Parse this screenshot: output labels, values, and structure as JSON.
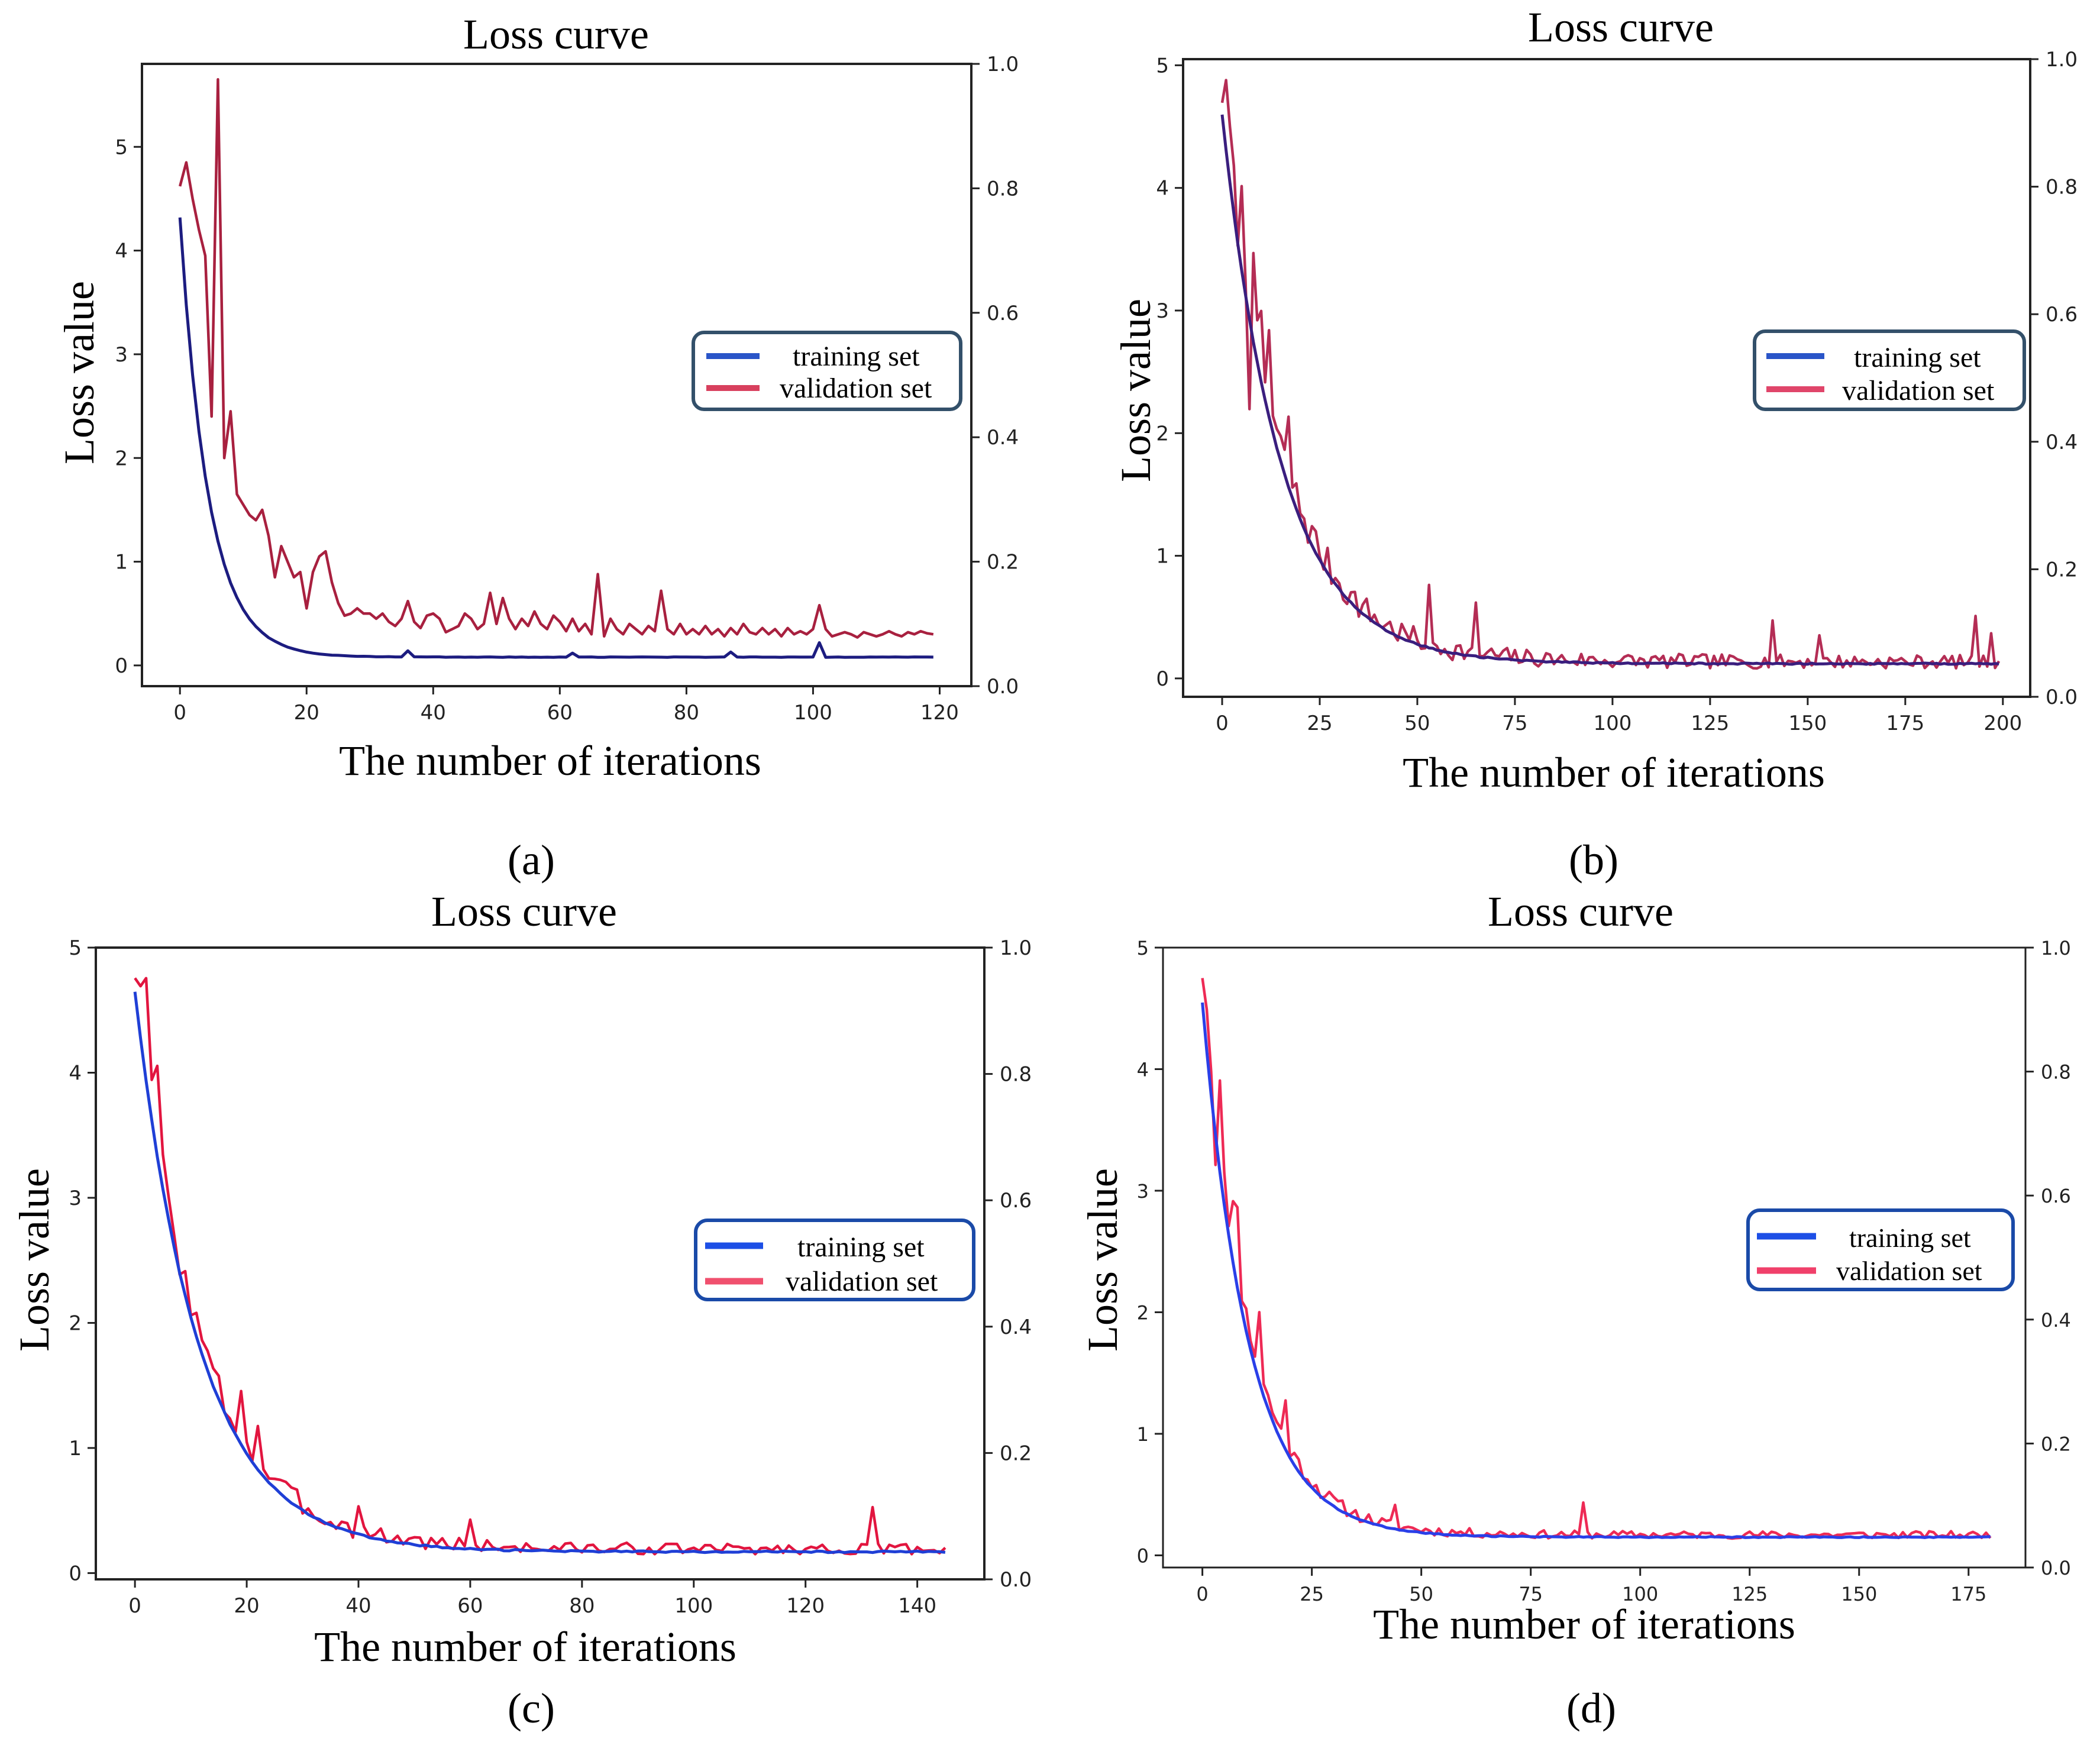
{
  "figure": {
    "panel_labels": [
      "(a)",
      "(b)",
      "(c)",
      "(d)"
    ]
  },
  "colors": {
    "a": {
      "training": "#1c1c80",
      "validation": "#a8203f",
      "legend_training": "#2a55c8",
      "legend_validation": "#d8405e"
    },
    "b": {
      "training": "#3a1e7e",
      "validation": "#b42d55",
      "legend_training": "#2a55c8",
      "legend_validation": "#e0456a"
    },
    "c": {
      "training": "#1f3fd6",
      "validation": "#e2153f",
      "legend_training": "#1d4fe6",
      "legend_validation": "#f0506e"
    },
    "d": {
      "training": "#2a3fe8",
      "validation": "#ee2a55",
      "legend_training": "#1d4fe6",
      "legend_validation": "#f0406a"
    }
  },
  "chart_data": [
    {
      "type": "line",
      "panel": "(a)",
      "title": "Loss curve",
      "xlabel": "The number of iterations",
      "ylabel": "Loss value",
      "xlim": [
        -6,
        125
      ],
      "ylim": [
        -0.2,
        5.8
      ],
      "y2lim": [
        0,
        1
      ],
      "xticks": [
        0,
        20,
        40,
        60,
        80,
        100,
        120
      ],
      "yticks": [
        0,
        1,
        2,
        3,
        4,
        5
      ],
      "y2ticks": [
        "0.0",
        "0.2",
        "0.4",
        "0.6",
        "0.8",
        "1.0"
      ],
      "legend": {
        "position": "center-right",
        "labels": [
          "training set",
          "validation set"
        ]
      },
      "series": [
        {
          "name": "training set",
          "kind": "decay",
          "n": 120,
          "start": 4.32,
          "end": 0.08,
          "tau": 4.5,
          "noise": 0.004,
          "spikes": [
            [
              36,
              0.06
            ],
            [
              62,
              0.04
            ],
            [
              87,
              0.05
            ],
            [
              101,
              0.14
            ]
          ]
        },
        {
          "name": "validation set",
          "kind": "explicit",
          "points": [
            [
              0,
              4.62
            ],
            [
              1,
              4.85
            ],
            [
              2,
              4.5
            ],
            [
              3,
              4.2
            ],
            [
              4,
              3.95
            ],
            [
              5,
              2.4
            ],
            [
              6,
              5.65
            ],
            [
              7,
              2.0
            ],
            [
              8,
              2.45
            ],
            [
              9,
              1.65
            ],
            [
              10,
              1.55
            ],
            [
              11,
              1.45
            ],
            [
              12,
              1.4
            ],
            [
              13,
              1.5
            ],
            [
              14,
              1.25
            ],
            [
              15,
              0.85
            ],
            [
              16,
              1.15
            ],
            [
              17,
              1.0
            ],
            [
              18,
              0.85
            ],
            [
              19,
              0.9
            ],
            [
              20,
              0.55
            ],
            [
              21,
              0.9
            ],
            [
              22,
              1.05
            ],
            [
              23,
              1.1
            ],
            [
              24,
              0.8
            ],
            [
              25,
              0.6
            ],
            [
              26,
              0.48
            ],
            [
              27,
              0.5
            ],
            [
              28,
              0.55
            ],
            [
              29,
              0.5
            ],
            [
              30,
              0.5
            ],
            [
              31,
              0.45
            ],
            [
              32,
              0.5
            ],
            [
              33,
              0.42
            ],
            [
              34,
              0.38
            ],
            [
              35,
              0.45
            ],
            [
              36,
              0.62
            ],
            [
              37,
              0.42
            ],
            [
              38,
              0.36
            ],
            [
              39,
              0.48
            ],
            [
              40,
              0.5
            ],
            [
              41,
              0.45
            ],
            [
              42,
              0.32
            ],
            [
              43,
              0.35
            ],
            [
              44,
              0.38
            ],
            [
              45,
              0.5
            ],
            [
              46,
              0.45
            ],
            [
              47,
              0.35
            ],
            [
              48,
              0.4
            ],
            [
              49,
              0.7
            ],
            [
              50,
              0.4
            ],
            [
              51,
              0.65
            ],
            [
              52,
              0.45
            ],
            [
              53,
              0.35
            ],
            [
              54,
              0.45
            ],
            [
              55,
              0.38
            ],
            [
              56,
              0.52
            ],
            [
              57,
              0.4
            ],
            [
              58,
              0.35
            ],
            [
              59,
              0.48
            ],
            [
              60,
              0.42
            ],
            [
              61,
              0.33
            ],
            [
              62,
              0.45
            ],
            [
              63,
              0.33
            ],
            [
              64,
              0.4
            ],
            [
              65,
              0.3
            ],
            [
              66,
              0.88
            ],
            [
              67,
              0.28
            ],
            [
              68,
              0.45
            ],
            [
              69,
              0.35
            ],
            [
              70,
              0.3
            ],
            [
              71,
              0.4
            ],
            [
              72,
              0.35
            ],
            [
              73,
              0.3
            ],
            [
              74,
              0.38
            ],
            [
              75,
              0.33
            ],
            [
              76,
              0.72
            ],
            [
              77,
              0.35
            ],
            [
              78,
              0.3
            ],
            [
              79,
              0.4
            ],
            [
              80,
              0.3
            ],
            [
              81,
              0.35
            ],
            [
              82,
              0.3
            ],
            [
              83,
              0.38
            ],
            [
              84,
              0.3
            ],
            [
              85,
              0.35
            ],
            [
              86,
              0.28
            ],
            [
              87,
              0.36
            ],
            [
              88,
              0.3
            ],
            [
              89,
              0.4
            ],
            [
              90,
              0.32
            ],
            [
              91,
              0.3
            ],
            [
              92,
              0.36
            ],
            [
              93,
              0.3
            ],
            [
              94,
              0.35
            ],
            [
              95,
              0.28
            ],
            [
              96,
              0.36
            ],
            [
              97,
              0.3
            ],
            [
              98,
              0.33
            ],
            [
              99,
              0.3
            ],
            [
              100,
              0.35
            ],
            [
              101,
              0.58
            ],
            [
              102,
              0.35
            ],
            [
              103,
              0.28
            ],
            [
              104,
              0.3
            ],
            [
              105,
              0.32
            ],
            [
              106,
              0.3
            ],
            [
              107,
              0.27
            ],
            [
              108,
              0.32
            ],
            [
              109,
              0.3
            ],
            [
              110,
              0.28
            ],
            [
              111,
              0.3
            ],
            [
              112,
              0.33
            ],
            [
              113,
              0.3
            ],
            [
              114,
              0.28
            ],
            [
              115,
              0.32
            ],
            [
              116,
              0.3
            ],
            [
              117,
              0.33
            ],
            [
              118,
              0.31
            ],
            [
              119,
              0.3
            ]
          ]
        }
      ]
    },
    {
      "type": "line",
      "panel": "(b)",
      "title": "Loss curve",
      "xlabel": "The number of iterations",
      "ylabel": "Loss value",
      "xlim": [
        -10,
        207
      ],
      "ylim": [
        -0.15,
        5.05
      ],
      "y2lim": [
        0,
        1
      ],
      "xticks": [
        0,
        25,
        50,
        75,
        100,
        125,
        150,
        175,
        200
      ],
      "yticks": [
        0,
        1,
        2,
        3,
        4,
        5
      ],
      "y2ticks": [
        "0.0",
        "0.2",
        "0.4",
        "0.6",
        "0.8",
        "1.0"
      ],
      "legend": {
        "position": "center-right",
        "labels": [
          "training set",
          "validation set"
        ]
      },
      "series": [
        {
          "name": "training set",
          "kind": "decay",
          "n": 200,
          "start": 4.6,
          "end": 0.12,
          "tau": 15,
          "noise": 0.01,
          "spikes": []
        },
        {
          "name": "validation set",
          "kind": "noisy",
          "n": 200,
          "start": 4.75,
          "end": 0.12,
          "tau": 15,
          "noise": 0.09,
          "seed": 7,
          "spikes": [
            [
              1,
              0.15
            ],
            [
              2,
              0.2
            ],
            [
              5,
              0.35
            ],
            [
              7,
              -0.7
            ],
            [
              8,
              0.75
            ],
            [
              10,
              0.25
            ],
            [
              12,
              0.6
            ],
            [
              17,
              0.5
            ],
            [
              53,
              0.4
            ],
            [
              65,
              0.35
            ],
            [
              141,
              0.35
            ],
            [
              153,
              0.25
            ],
            [
              193,
              0.4
            ],
            [
              197,
              0.25
            ]
          ]
        }
      ]
    },
    {
      "type": "line",
      "panel": "(c)",
      "title": "Loss curve",
      "xlabel": "The number of iterations",
      "ylabel": "Loss value",
      "xlim": [
        -7,
        152
      ],
      "ylim": [
        -0.05,
        5
      ],
      "y2lim": [
        0,
        1
      ],
      "xticks": [
        0,
        20,
        40,
        60,
        80,
        100,
        120,
        140
      ],
      "yticks": [
        0,
        1,
        2,
        3,
        4,
        5
      ],
      "y2ticks": [
        "0.0",
        "0.2",
        "0.4",
        "0.6",
        "0.8",
        "1.0"
      ],
      "legend": {
        "position": "center-right",
        "labels": [
          "training set",
          "validation set"
        ]
      },
      "series": [
        {
          "name": "training set",
          "kind": "decay",
          "n": 146,
          "start": 4.65,
          "end": 0.17,
          "tau": 11.5,
          "noise": 0.012,
          "spikes": []
        },
        {
          "name": "validation set",
          "kind": "noisy",
          "n": 146,
          "start": 4.8,
          "end": 0.18,
          "tau": 11.5,
          "noise": 0.07,
          "seed": 3,
          "spikes": [
            [
              1,
              0.2
            ],
            [
              2,
              0.5
            ],
            [
              3,
              0.05
            ],
            [
              4,
              0.6
            ],
            [
              19,
              0.4
            ],
            [
              22,
              0.3
            ],
            [
              40,
              0.2
            ],
            [
              60,
              0.25
            ],
            [
              132,
              0.3
            ]
          ]
        }
      ]
    },
    {
      "type": "line",
      "panel": "(d)",
      "title": "Loss curve",
      "xlabel": "The number of iterations",
      "ylabel": "Loss value",
      "xlim": [
        -9,
        188
      ],
      "ylim": [
        -0.1,
        5
      ],
      "y2lim": [
        0,
        1
      ],
      "xticks": [
        0,
        25,
        50,
        75,
        100,
        125,
        150,
        175
      ],
      "yticks": [
        0,
        1,
        2,
        3,
        4,
        5
      ],
      "y2ticks": [
        "0.0",
        "0.2",
        "0.4",
        "0.6",
        "0.8",
        "1.0"
      ],
      "legend": {
        "position": "center-right",
        "labels": [
          "training set",
          "validation set"
        ]
      },
      "series": [
        {
          "name": "training set",
          "kind": "decay",
          "n": 181,
          "start": 4.55,
          "end": 0.15,
          "tau": 10.5,
          "noise": 0.008,
          "spikes": []
        },
        {
          "name": "validation set",
          "kind": "noisy",
          "n": 181,
          "start": 4.78,
          "end": 0.16,
          "tau": 10.5,
          "noise": 0.05,
          "seed": 11,
          "spikes": [
            [
              1,
              0.15
            ],
            [
              3,
              -0.35
            ],
            [
              4,
              0.5
            ],
            [
              7,
              0.3
            ],
            [
              8,
              0.6
            ],
            [
              13,
              0.5
            ],
            [
              19,
              0.35
            ],
            [
              44,
              0.15
            ],
            [
              87,
              0.25
            ]
          ]
        }
      ]
    }
  ]
}
